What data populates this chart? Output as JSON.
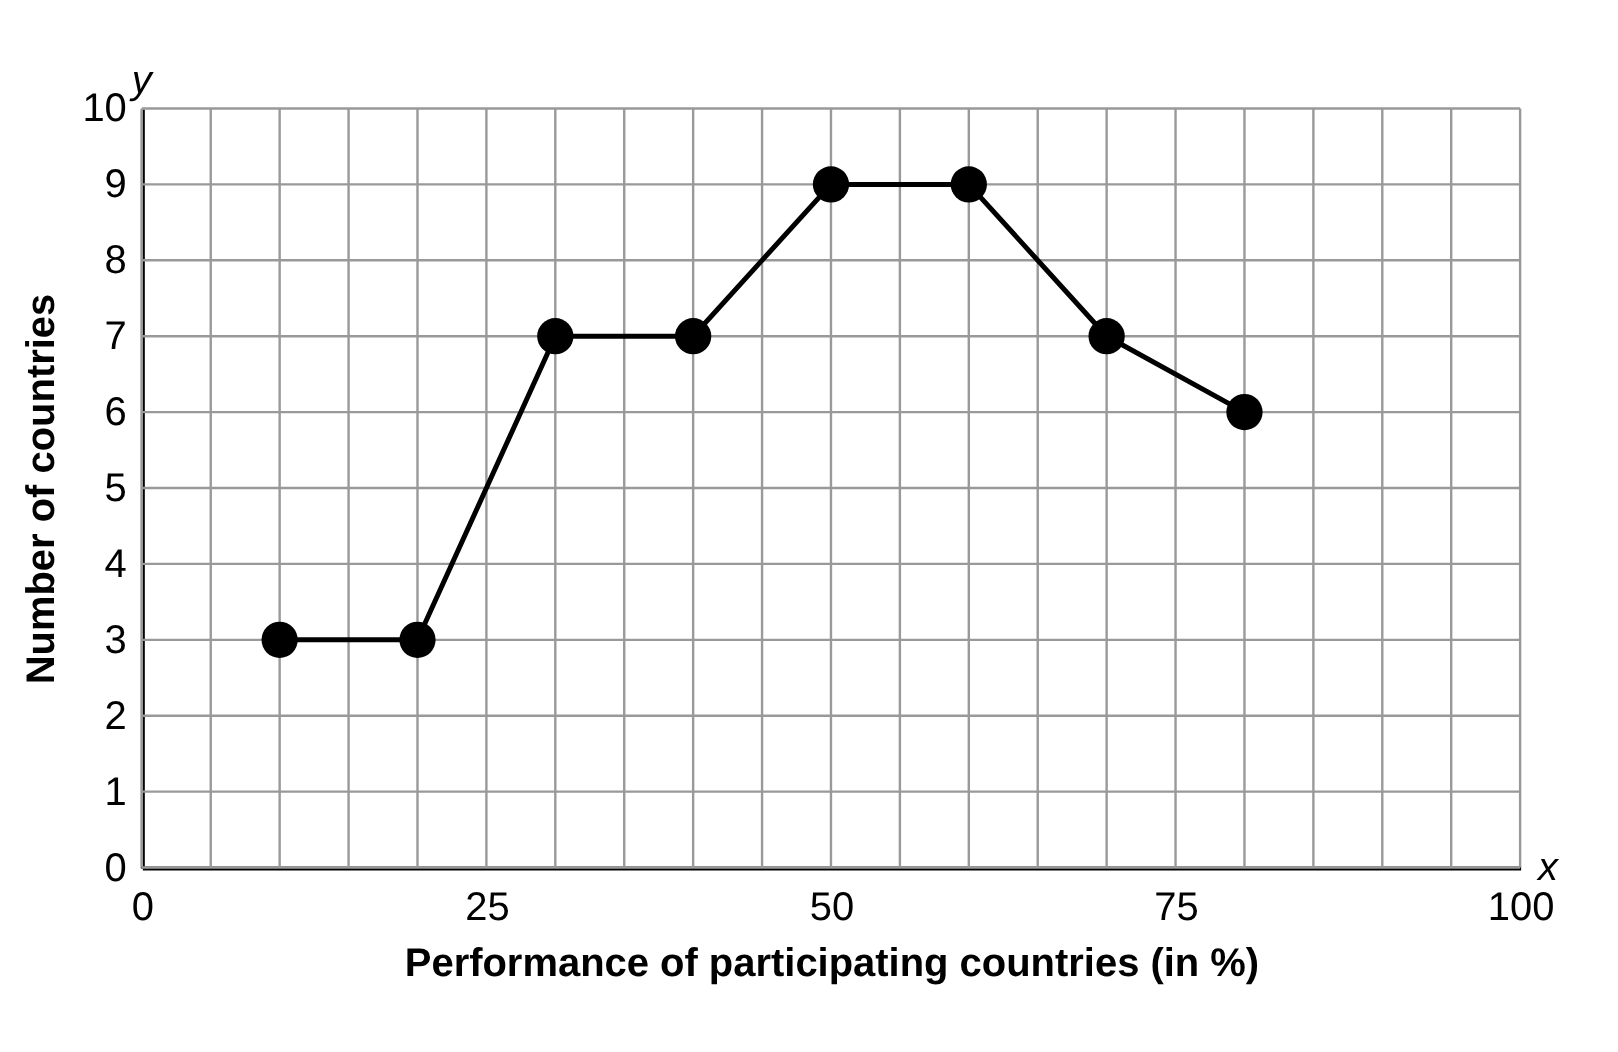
{
  "chart_data": {
    "type": "line",
    "xlabel": "Performance of participating countries (in %)",
    "ylabel": "Number of countries",
    "x": [
      10,
      20,
      30,
      40,
      50,
      60,
      70,
      80
    ],
    "series": [
      {
        "color": "#000000",
        "values": [
          3,
          3,
          7,
          7,
          9,
          9,
          7,
          6
        ]
      }
    ],
    "xlim": [
      0,
      100
    ],
    "xticks": [
      0,
      {
        "value": 5,
        "label": null
      },
      {
        "value": 10,
        "label": null
      },
      {
        "value": 15,
        "label": null
      },
      {
        "value": 20,
        "label": null
      },
      25,
      {
        "value": 30,
        "label": null
      },
      {
        "value": 35,
        "label": null
      },
      {
        "value": 40,
        "label": null
      },
      {
        "value": 45,
        "label": null
      },
      50,
      {
        "value": 55,
        "label": null
      },
      {
        "value": 60,
        "label": null
      },
      {
        "value": 65,
        "label": null
      },
      {
        "value": 70,
        "label": null
      },
      75,
      {
        "value": 80,
        "label": null
      },
      {
        "value": 85,
        "label": null
      },
      {
        "value": 90,
        "label": null
      },
      {
        "value": 95,
        "label": null
      },
      100
    ],
    "ylim": [
      0,
      10
    ],
    "yticks": [
      0,
      1,
      2,
      3,
      4,
      5,
      6,
      7,
      8,
      9,
      10
    ],
    "grid": true,
    "marker": "circle",
    "line_style": "solid",
    "annotations": [
      "x",
      "y"
    ]
  }
}
